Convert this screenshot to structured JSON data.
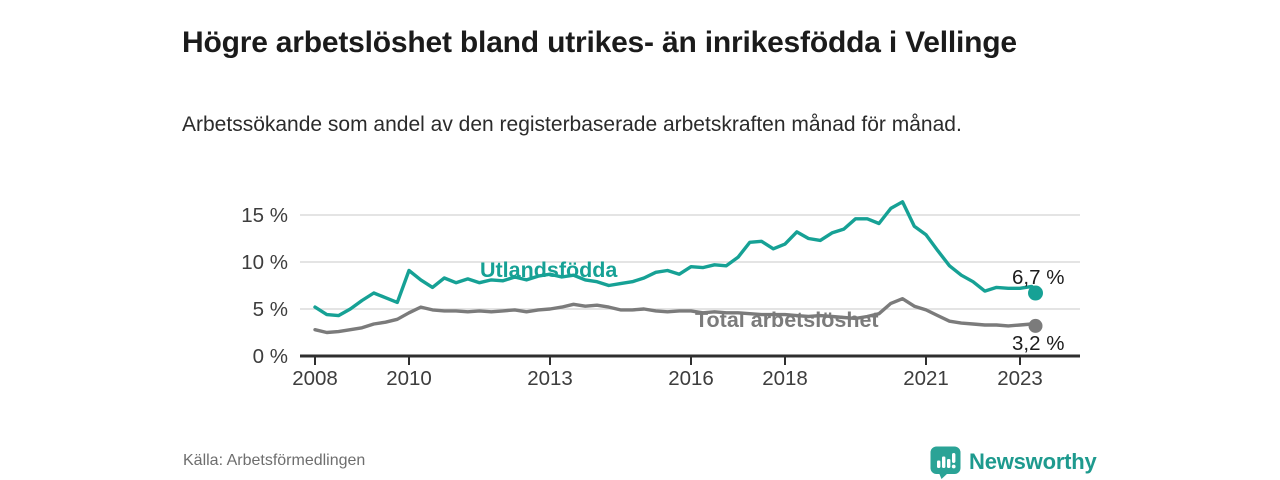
{
  "header": {
    "title": "Högre arbetslöshet bland utrikes- än inrikesfödda i Vellinge",
    "subtitle": "Arbetssökande som andel av den registerbaserade arbetskraften månad för månad."
  },
  "chart_data": {
    "type": "line",
    "title": "Högre arbetslöshet bland utrikes- än inrikesfödda i Vellinge",
    "subtitle": "Arbetssökande som andel av den registerbaserade arbetskraften månad för månad.",
    "x_unit": "year (monthly share of labour force, quarterly estimates)",
    "x": [
      2008,
      2008.25,
      2008.5,
      2008.75,
      2009,
      2009.25,
      2009.5,
      2009.75,
      2010,
      2010.25,
      2010.5,
      2010.75,
      2011,
      2011.25,
      2011.5,
      2011.75,
      2012,
      2012.25,
      2012.5,
      2012.75,
      2013,
      2013.25,
      2013.5,
      2013.75,
      2014,
      2014.25,
      2014.5,
      2014.75,
      2015,
      2015.25,
      2015.5,
      2015.75,
      2016,
      2016.25,
      2016.5,
      2016.75,
      2017,
      2017.25,
      2017.5,
      2017.75,
      2018,
      2018.25,
      2018.5,
      2018.75,
      2019,
      2019.25,
      2019.5,
      2019.75,
      2020,
      2020.25,
      2020.5,
      2020.75,
      2021,
      2021.25,
      2021.5,
      2021.75,
      2022,
      2022.25,
      2022.5,
      2022.75,
      2023,
      2023.25,
      2023.33
    ],
    "series": [
      {
        "name": "Utlandsfödda",
        "color": "#16A195",
        "end_label": "6,7 %",
        "end_value": 6.7,
        "values": [
          5.2,
          4.4,
          4.3,
          5.0,
          5.9,
          6.7,
          6.2,
          5.7,
          9.1,
          8.1,
          7.3,
          8.3,
          7.8,
          8.2,
          7.8,
          8.1,
          8.0,
          8.4,
          8.1,
          8.5,
          8.7,
          8.4,
          8.6,
          8.1,
          7.9,
          7.5,
          7.7,
          7.9,
          8.3,
          8.9,
          9.1,
          8.7,
          9.5,
          9.4,
          9.7,
          9.6,
          10.5,
          12.1,
          12.2,
          11.4,
          11.9,
          13.2,
          12.5,
          12.3,
          13.1,
          13.5,
          14.6,
          14.6,
          14.1,
          15.7,
          16.4,
          13.8,
          12.9,
          11.2,
          9.6,
          8.6,
          7.9,
          6.9,
          7.3,
          7.2,
          7.2,
          7.4,
          6.7
        ]
      },
      {
        "name": "Total arbetslöshet",
        "color": "#7B7B7B",
        "end_label": "3,2 %",
        "end_value": 3.2,
        "values": [
          2.8,
          2.5,
          2.6,
          2.8,
          3.0,
          3.4,
          3.6,
          3.9,
          4.6,
          5.2,
          4.9,
          4.8,
          4.8,
          4.7,
          4.8,
          4.7,
          4.8,
          4.9,
          4.7,
          4.9,
          5.0,
          5.2,
          5.5,
          5.3,
          5.4,
          5.2,
          4.9,
          4.9,
          5.0,
          4.8,
          4.7,
          4.8,
          4.8,
          4.6,
          4.7,
          4.6,
          4.6,
          4.5,
          4.4,
          4.4,
          4.4,
          4.3,
          4.2,
          4.3,
          4.2,
          4.1,
          4.0,
          4.2,
          4.5,
          5.6,
          6.1,
          5.3,
          4.9,
          4.3,
          3.7,
          3.5,
          3.4,
          3.3,
          3.3,
          3.2,
          3.3,
          3.4,
          3.2
        ]
      }
    ],
    "ylim": [
      0,
      17.5
    ],
    "yticks": [
      0,
      5,
      10,
      15
    ],
    "ytick_labels": [
      "0 %",
      "5 %",
      "10 %",
      "15 %"
    ],
    "xticks": [
      2008,
      2010,
      2013,
      2016,
      2018,
      2021,
      2023
    ],
    "xtick_labels": [
      "2008",
      "2010",
      "2013",
      "2016",
      "2018",
      "2021",
      "2023"
    ],
    "grid": "horizontal",
    "legend": "inline-labels"
  },
  "footer": {
    "source": "Källa: Arbetsförmedlingen",
    "brand": "Newsworthy"
  },
  "icons": {
    "logo": "newsworthy-bar-chart-speech-bubble-icon"
  },
  "colors": {
    "accent_teal": "#16A195",
    "line_gray": "#7B7B7B",
    "brand_teal": "#1E9A8E",
    "axis_dark": "#2F2F2F",
    "grid_light": "#DCDCDC"
  }
}
